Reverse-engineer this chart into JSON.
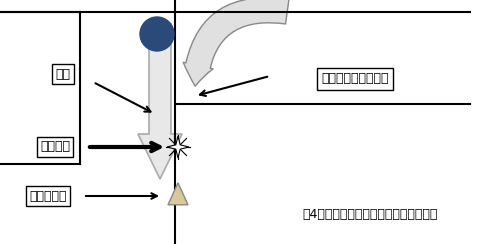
{
  "fig_width": 4.95,
  "fig_height": 2.44,
  "dpi": 100,
  "bg_color": "#ffffff",
  "label_kyori": "距離",
  "label_tsuchi": "通知位置",
  "label_keitai": "携帯電話機",
  "label_houkou": "方向転換位置の座標",
  "caption": "図4　イ号システムの概要を示す説明図",
  "circle_color": "#2a4a7a",
  "triangle_color": "#d8c89a"
}
